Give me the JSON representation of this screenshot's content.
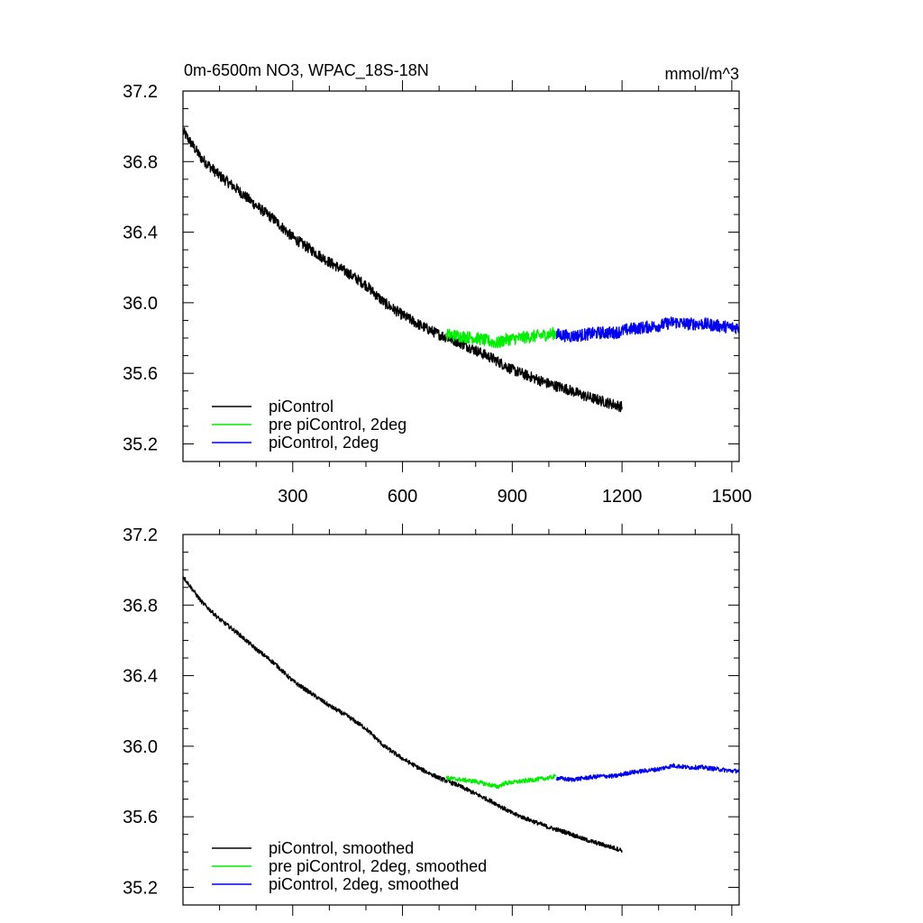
{
  "chart_data": [
    {
      "type": "line",
      "title_left": "0m-6500m NO3, WPAC_18S-18N",
      "title_right": "mmol/m^3",
      "xlim": [
        0,
        1520
      ],
      "ylim": [
        35.1,
        37.2
      ],
      "xticks": [
        300,
        600,
        900,
        1200,
        1500
      ],
      "xtick_labels": [
        "300",
        "600",
        "900",
        "1200",
        "1500"
      ],
      "yticks": [
        35.2,
        35.6,
        36.0,
        36.4,
        36.8,
        37.2
      ],
      "ytick_labels": [
        "35.2",
        "35.6",
        "36.0",
        "36.4",
        "36.8",
        "37.2"
      ],
      "series": [
        {
          "name": "piControl",
          "color": "#000000",
          "x": [
            1,
            50,
            100,
            150,
            200,
            250,
            300,
            350,
            400,
            450,
            500,
            550,
            600,
            650,
            700,
            750,
            800,
            850,
            900,
            950,
            1000,
            1050,
            1100,
            1150,
            1200
          ],
          "y": [
            36.97,
            36.82,
            36.72,
            36.64,
            36.55,
            36.47,
            36.37,
            36.3,
            36.23,
            36.17,
            36.1,
            36.0,
            35.93,
            35.87,
            35.82,
            35.78,
            35.73,
            35.68,
            35.62,
            35.58,
            35.54,
            35.51,
            35.47,
            35.44,
            35.41
          ],
          "noise": 0.03
        },
        {
          "name": "pre piControl, 2deg",
          "color": "#00ee00",
          "x": [
            720,
            760,
            800,
            840,
            860,
            880,
            920,
            960,
            1000,
            1020
          ],
          "y": [
            35.82,
            35.81,
            35.8,
            35.78,
            35.77,
            35.79,
            35.8,
            35.81,
            35.82,
            35.83
          ],
          "noise": 0.035
        },
        {
          "name": "piControl, 2deg",
          "color": "#0000ee",
          "x": [
            1020,
            1060,
            1100,
            1140,
            1180,
            1220,
            1260,
            1300,
            1340,
            1380,
            1420,
            1460,
            1500,
            1520
          ],
          "y": [
            35.82,
            35.81,
            35.82,
            35.83,
            35.83,
            35.85,
            35.86,
            35.87,
            35.89,
            35.88,
            35.88,
            35.87,
            35.86,
            35.86
          ],
          "noise": 0.035
        }
      ],
      "legend": [
        "piControl",
        "pre piControl, 2deg",
        "piControl, 2deg"
      ],
      "legend_position": "bottom-left"
    },
    {
      "type": "line",
      "xlim": [
        0,
        1520
      ],
      "ylim": [
        35.1,
        37.2
      ],
      "xticks": [
        300,
        600,
        900,
        1200,
        1500
      ],
      "yticks": [
        35.2,
        35.6,
        36.0,
        36.4,
        36.8,
        37.2
      ],
      "ytick_labels": [
        "35.2",
        "35.6",
        "36.0",
        "36.4",
        "36.8",
        "37.2"
      ],
      "series": [
        {
          "name": "piControl, smoothed",
          "color": "#000000",
          "x": [
            1,
            50,
            100,
            150,
            200,
            250,
            300,
            350,
            400,
            450,
            500,
            550,
            600,
            650,
            700,
            750,
            800,
            850,
            900,
            950,
            1000,
            1050,
            1100,
            1150,
            1200
          ],
          "y": [
            36.96,
            36.82,
            36.72,
            36.64,
            36.55,
            36.47,
            36.37,
            36.3,
            36.23,
            36.17,
            36.1,
            36.0,
            35.93,
            35.87,
            35.82,
            35.78,
            35.73,
            35.68,
            35.62,
            35.58,
            35.54,
            35.51,
            35.47,
            35.44,
            35.41
          ],
          "noise": 0.012
        },
        {
          "name": "pre piControl, 2deg, smoothed",
          "color": "#00ee00",
          "x": [
            720,
            760,
            800,
            840,
            860,
            880,
            920,
            960,
            1000,
            1020
          ],
          "y": [
            35.82,
            35.81,
            35.8,
            35.78,
            35.77,
            35.79,
            35.8,
            35.81,
            35.82,
            35.83
          ],
          "noise": 0.012
        },
        {
          "name": "piControl, 2deg, smoothed",
          "color": "#0000ee",
          "x": [
            1020,
            1060,
            1100,
            1140,
            1180,
            1220,
            1260,
            1300,
            1340,
            1380,
            1420,
            1460,
            1500,
            1520
          ],
          "y": [
            35.82,
            35.81,
            35.82,
            35.83,
            35.83,
            35.85,
            35.86,
            35.87,
            35.89,
            35.88,
            35.88,
            35.87,
            35.86,
            35.86
          ],
          "noise": 0.012
        }
      ],
      "legend": [
        "piControl, smoothed",
        "pre piControl, 2deg, smoothed",
        "piControl, 2deg, smoothed"
      ],
      "legend_position": "bottom-left"
    }
  ]
}
